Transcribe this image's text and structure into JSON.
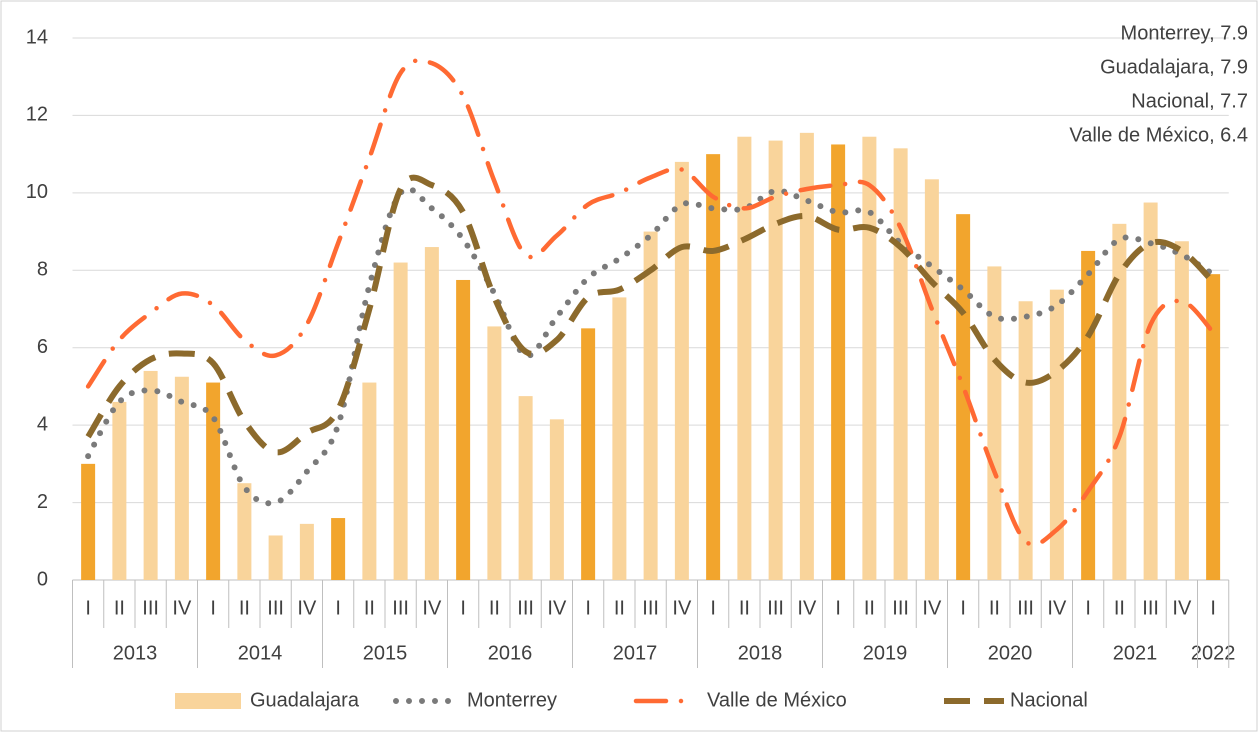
{
  "chart_data": {
    "type": "bar_line",
    "categories": [
      "I",
      "II",
      "III",
      "IV",
      "I",
      "II",
      "III",
      "IV",
      "I",
      "II",
      "III",
      "IV",
      "I",
      "II",
      "III",
      "IV",
      "I",
      "II",
      "III",
      "IV",
      "I",
      "II",
      "III",
      "IV",
      "I",
      "II",
      "III",
      "IV",
      "I",
      "II",
      "III",
      "IV",
      "I",
      "II",
      "III",
      "IV",
      "I"
    ],
    "year_groups": [
      {
        "label": "2013",
        "count": 4
      },
      {
        "label": "2014",
        "count": 4
      },
      {
        "label": "2015",
        "count": 4
      },
      {
        "label": "2016",
        "count": 4
      },
      {
        "label": "2017",
        "count": 4
      },
      {
        "label": "2018",
        "count": 4
      },
      {
        "label": "2019",
        "count": 4
      },
      {
        "label": "2020",
        "count": 4
      },
      {
        "label": "2021",
        "count": 4
      },
      {
        "label": "2022",
        "count": 1
      }
    ],
    "series": [
      {
        "name": "Guadalajara",
        "kind": "bar",
        "color": "#f9d49b",
        "highlight_color": "#f2a52d",
        "values": [
          3.0,
          4.6,
          5.4,
          5.25,
          5.1,
          2.5,
          1.15,
          1.45,
          1.6,
          5.1,
          8.2,
          8.6,
          7.75,
          6.55,
          4.75,
          4.15,
          6.5,
          7.3,
          9.0,
          10.8,
          11.0,
          11.45,
          11.35,
          11.55,
          11.25,
          11.45,
          11.15,
          10.35,
          9.45,
          8.1,
          7.2,
          7.5,
          8.5,
          9.2,
          9.75,
          8.75,
          7.9
        ]
      },
      {
        "name": "Monterrey",
        "kind": "line",
        "style": "dotted",
        "color": "#7a7a7a",
        "values": [
          3.2,
          4.6,
          4.9,
          4.6,
          4.2,
          2.4,
          2.0,
          2.8,
          4.0,
          7.6,
          10.0,
          9.6,
          8.8,
          7.4,
          5.8,
          6.8,
          7.8,
          8.3,
          8.9,
          9.7,
          9.6,
          9.6,
          10.05,
          9.8,
          9.5,
          9.5,
          8.7,
          8.1,
          7.5,
          6.8,
          6.8,
          7.1,
          7.9,
          8.8,
          8.7,
          8.4,
          7.9
        ]
      },
      {
        "name": "Valle de México",
        "kind": "line",
        "style": "dashdot",
        "color": "#ff6a33",
        "values": [
          5.0,
          6.2,
          6.9,
          7.4,
          7.1,
          6.2,
          5.8,
          6.6,
          8.7,
          10.9,
          13.1,
          13.35,
          12.5,
          10.3,
          8.4,
          8.9,
          9.7,
          10.0,
          10.4,
          10.6,
          9.9,
          9.6,
          9.9,
          10.1,
          10.2,
          10.2,
          9.1,
          7.0,
          5.0,
          2.8,
          1.0,
          1.3,
          2.3,
          3.7,
          6.6,
          7.2,
          6.4
        ]
      },
      {
        "name": "Nacional",
        "kind": "line",
        "style": "dashed",
        "color": "#8c6a2c",
        "values": [
          3.7,
          5.0,
          5.7,
          5.85,
          5.6,
          4.1,
          3.3,
          3.8,
          4.4,
          7.0,
          10.1,
          10.2,
          9.5,
          7.3,
          5.9,
          6.2,
          7.3,
          7.5,
          8.0,
          8.6,
          8.5,
          8.8,
          9.2,
          9.4,
          9.05,
          9.1,
          8.6,
          7.7,
          6.9,
          5.7,
          5.1,
          5.4,
          6.3,
          7.9,
          8.7,
          8.5,
          7.7
        ]
      }
    ],
    "annotations": [
      "Monterrey, 7.9",
      "Guadalajara, 7.9",
      "Nacional, 7.7",
      "Valle de México, 6.4"
    ],
    "ylim": [
      0,
      14
    ],
    "yticks": [
      0,
      2,
      4,
      6,
      8,
      10,
      12,
      14
    ],
    "grid": true,
    "legend": "bottom"
  }
}
